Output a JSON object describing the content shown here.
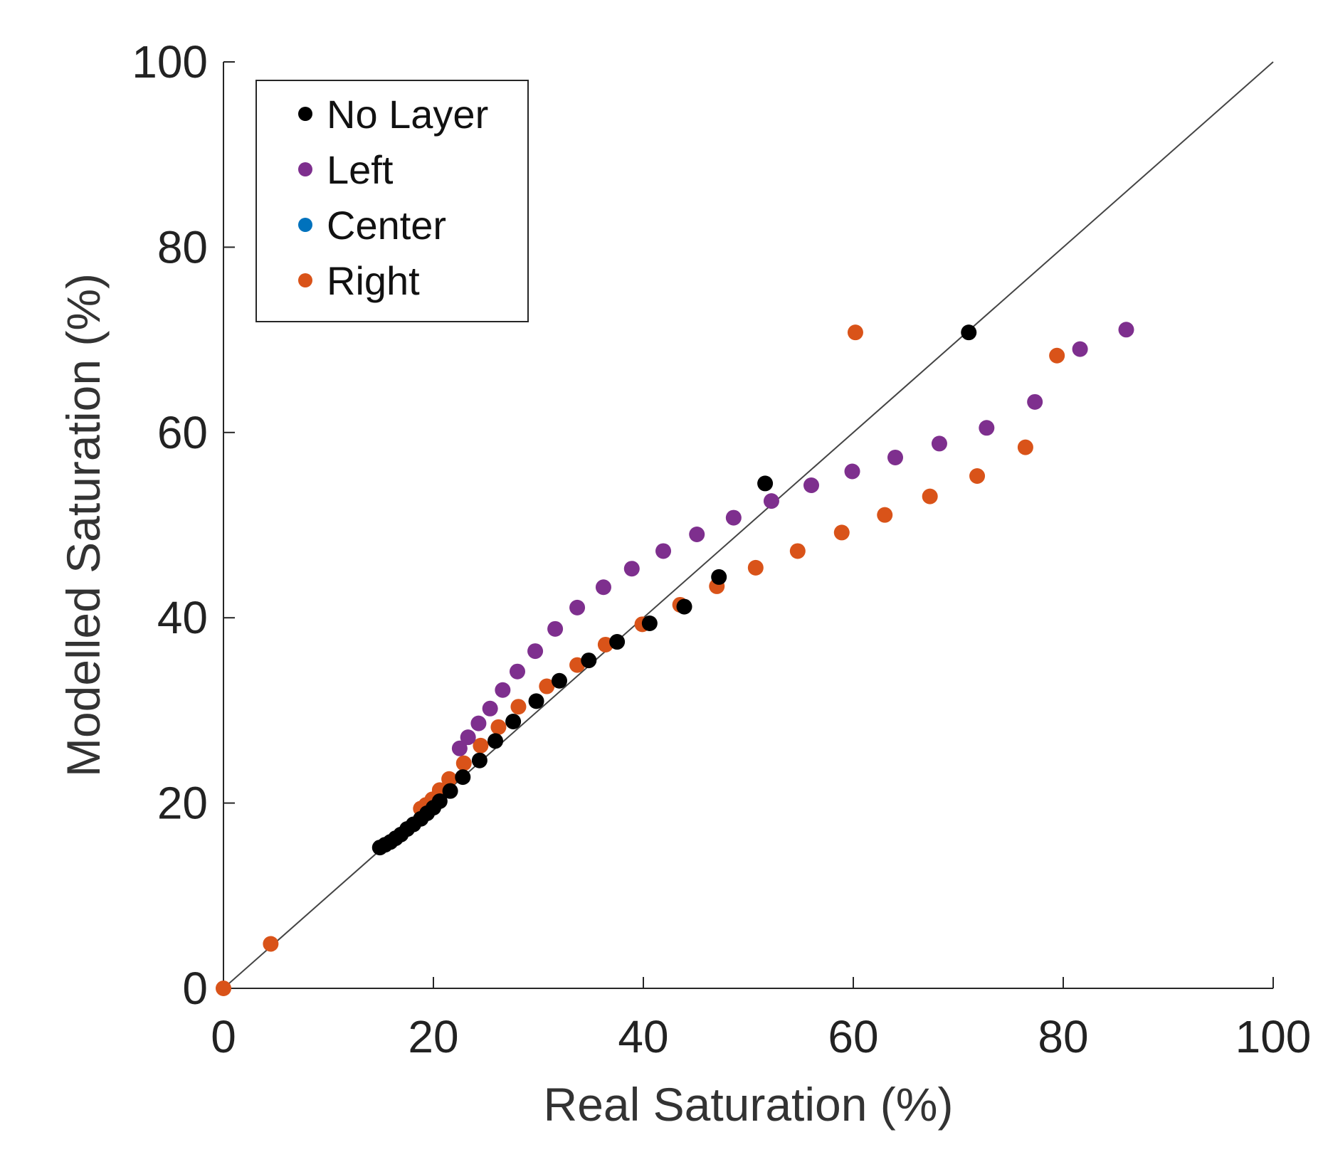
{
  "chart_data": {
    "type": "scatter",
    "title": "",
    "xlabel": "Real Saturation (%)",
    "ylabel": "Modelled Saturation (%)",
    "xlim": [
      0,
      100
    ],
    "ylim": [
      0,
      100
    ],
    "xticks": [
      "0",
      "20",
      "40",
      "60",
      "80",
      "100"
    ],
    "yticks": [
      "0",
      "20",
      "40",
      "60",
      "80",
      "100"
    ],
    "grid": false,
    "legend_position": "top-left",
    "reference_line": {
      "type": "identity",
      "from": [
        0,
        0
      ],
      "to": [
        100,
        100
      ],
      "color": "#444444"
    },
    "series": [
      {
        "name": "No Layer",
        "color": "#000000",
        "points": [
          [
            14.9,
            15.2
          ],
          [
            15.4,
            15.5
          ],
          [
            15.9,
            15.8
          ],
          [
            16.4,
            16.2
          ],
          [
            16.9,
            16.6
          ],
          [
            17.5,
            17.2
          ],
          [
            18.1,
            17.7
          ],
          [
            18.8,
            18.3
          ],
          [
            19.4,
            18.9
          ],
          [
            20.0,
            19.5
          ],
          [
            20.6,
            20.2
          ],
          [
            21.6,
            21.3
          ],
          [
            22.8,
            22.8
          ],
          [
            24.4,
            24.6
          ],
          [
            25.9,
            26.7
          ],
          [
            27.6,
            28.8
          ],
          [
            29.8,
            31.0
          ],
          [
            32.0,
            33.2
          ],
          [
            34.8,
            35.4
          ],
          [
            37.5,
            37.4
          ],
          [
            40.6,
            39.4
          ],
          [
            43.9,
            41.2
          ],
          [
            47.2,
            44.4
          ],
          [
            51.6,
            54.5
          ],
          [
            71.0,
            70.8
          ]
        ]
      },
      {
        "name": "Left",
        "color": "#7E2F8E",
        "points": [
          [
            22.5,
            25.9
          ],
          [
            23.3,
            27.1
          ],
          [
            24.3,
            28.6
          ],
          [
            25.4,
            30.2
          ],
          [
            26.6,
            32.2
          ],
          [
            28.0,
            34.2
          ],
          [
            29.7,
            36.4
          ],
          [
            31.6,
            38.8
          ],
          [
            33.7,
            41.1
          ],
          [
            36.2,
            43.3
          ],
          [
            38.9,
            45.3
          ],
          [
            41.9,
            47.2
          ],
          [
            45.1,
            49.0
          ],
          [
            48.6,
            50.8
          ],
          [
            52.2,
            52.6
          ],
          [
            56.0,
            54.3
          ],
          [
            59.9,
            55.8
          ],
          [
            64.0,
            57.3
          ],
          [
            68.2,
            58.8
          ],
          [
            72.7,
            60.5
          ],
          [
            77.3,
            63.3
          ],
          [
            81.6,
            69.0
          ],
          [
            86.0,
            71.1
          ]
        ]
      },
      {
        "name": "Center",
        "color": "#0072BD",
        "points": []
      },
      {
        "name": "Right",
        "color": "#D95319",
        "points": [
          [
            0.0,
            0.0
          ],
          [
            4.5,
            4.8
          ],
          [
            18.8,
            19.4
          ],
          [
            19.3,
            19.8
          ],
          [
            19.9,
            20.4
          ],
          [
            20.6,
            21.4
          ],
          [
            21.5,
            22.6
          ],
          [
            22.9,
            24.3
          ],
          [
            24.5,
            26.2
          ],
          [
            26.2,
            28.2
          ],
          [
            28.1,
            30.4
          ],
          [
            30.8,
            32.6
          ],
          [
            33.7,
            34.9
          ],
          [
            36.4,
            37.1
          ],
          [
            39.9,
            39.3
          ],
          [
            43.5,
            41.4
          ],
          [
            47.0,
            43.4
          ],
          [
            50.7,
            45.4
          ],
          [
            54.7,
            47.2
          ],
          [
            58.9,
            49.2
          ],
          [
            63.0,
            51.1
          ],
          [
            67.3,
            53.1
          ],
          [
            71.8,
            55.3
          ],
          [
            76.4,
            58.4
          ],
          [
            79.4,
            68.3
          ],
          [
            60.2,
            70.8
          ]
        ]
      }
    ]
  }
}
